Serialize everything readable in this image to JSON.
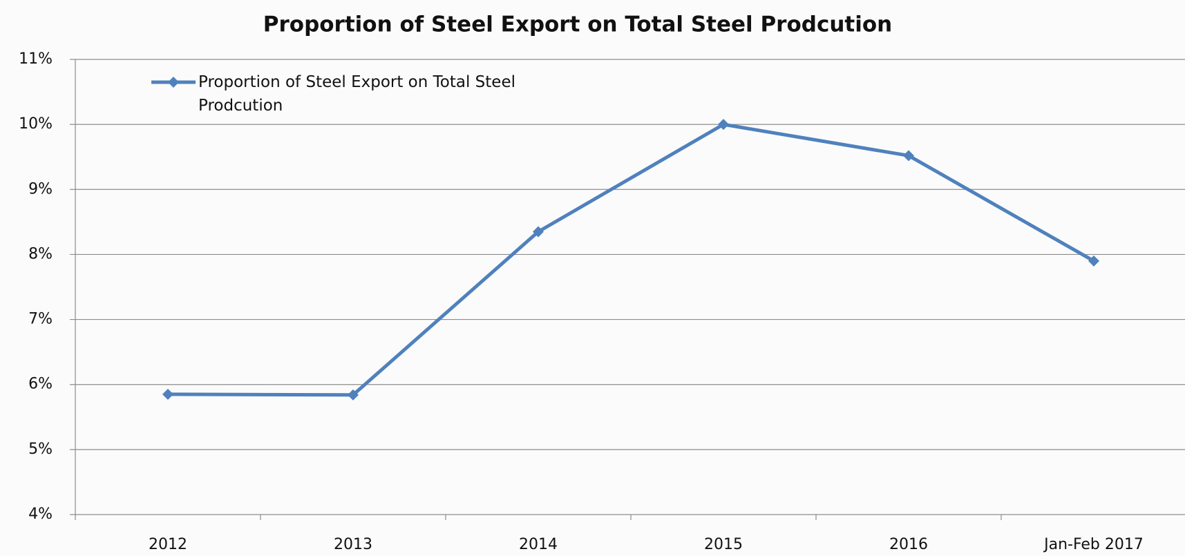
{
  "chart_data": {
    "type": "line",
    "title": "Proportion of Steel Export on Total Steel Prodcution",
    "categories": [
      "2012",
      "2013",
      "2014",
      "2015",
      "2016",
      "Jan-Feb 2017"
    ],
    "series": [
      {
        "name": "Proportion of Steel Export on Total Steel Prodcution",
        "color": "#4f81bd",
        "values": [
          5.85,
          5.84,
          8.35,
          10.0,
          9.52,
          7.9
        ]
      }
    ],
    "ylim": [
      4,
      11
    ],
    "yticks": [
      {
        "value": 4,
        "label": "4%"
      },
      {
        "value": 5,
        "label": "5%"
      },
      {
        "value": 6,
        "label": "6%"
      },
      {
        "value": 7,
        "label": "7%"
      },
      {
        "value": 8,
        "label": "8%"
      },
      {
        "value": 9,
        "label": "9%"
      },
      {
        "value": 10,
        "label": "10%"
      },
      {
        "value": 11,
        "label": "11%"
      }
    ],
    "grid": true,
    "legend": "upper left"
  }
}
